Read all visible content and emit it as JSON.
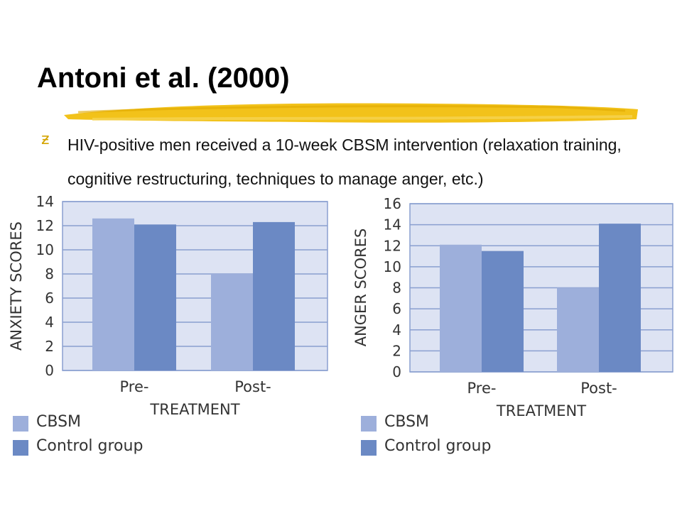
{
  "slide": {
    "title": "Antoni et al. (2000)",
    "bullet_icon": "z-bullet-icon",
    "bullet_text": "HIV-positive men received a 10-week CBSM intervention (relaxation training, cognitive restructuring, techniques to manage anger, etc.)"
  },
  "colors": {
    "accent": "#f2c21a",
    "plot_bg": "#dde3f3",
    "grid": "#8a9fd0",
    "cbsm": "#9dafdb",
    "control": "#6b89c4"
  },
  "chart_data": [
    {
      "type": "bar",
      "categories": [
        "Pre-",
        "Post-"
      ],
      "series": [
        {
          "name": "CBSM",
          "values": [
            12.6,
            8.0
          ]
        },
        {
          "name": "Control group",
          "values": [
            12.1,
            12.3
          ]
        }
      ],
      "xlabel": "TREATMENT",
      "ylabel": "ANXIETY SCORES",
      "ylim": [
        0,
        14
      ],
      "yticks": [
        0,
        2,
        4,
        6,
        8,
        10,
        12,
        14
      ],
      "grid": true,
      "legend": "bottom-left"
    },
    {
      "type": "bar",
      "categories": [
        "Pre-",
        "Post-"
      ],
      "series": [
        {
          "name": "CBSM",
          "values": [
            12.1,
            8.0
          ]
        },
        {
          "name": "Control group",
          "values": [
            11.5,
            14.1
          ]
        }
      ],
      "xlabel": "TREATMENT",
      "ylabel": "ANGER SCORES",
      "ylim": [
        0,
        16
      ],
      "yticks": [
        0,
        2,
        4,
        6,
        8,
        10,
        12,
        14,
        16
      ],
      "grid": true,
      "legend": "bottom-left"
    }
  ]
}
